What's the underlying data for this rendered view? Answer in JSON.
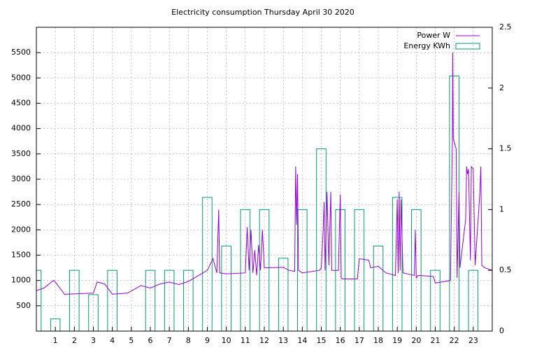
{
  "chart_data": {
    "type": "line",
    "title": "Electricity consumption Thursday April 30 2020",
    "xlim": [
      0,
      24
    ],
    "xticks": [
      1,
      2,
      3,
      4,
      5,
      6,
      7,
      8,
      9,
      10,
      11,
      12,
      13,
      14,
      15,
      16,
      17,
      18,
      19,
      20,
      21,
      22,
      23
    ],
    "ylim": [
      0,
      6000
    ],
    "yticks": [
      500,
      1000,
      1500,
      2000,
      2500,
      3000,
      3500,
      4000,
      4500,
      5000,
      5500
    ],
    "y2lim": [
      0,
      2.5
    ],
    "y2ticks": [
      0,
      0.5,
      1,
      1.5,
      2,
      2.5
    ],
    "grid": true,
    "legend": "top-right",
    "series": [
      {
        "name": "Power W",
        "color": "#9400d3",
        "type": "line",
        "x": [
          0,
          0.4,
          0.9,
          1.0,
          1.5,
          1.6,
          3.0,
          3.2,
          3.6,
          4.0,
          4.8,
          5.5,
          6.0,
          6.5,
          7.0,
          7.5,
          8.0,
          9.0,
          9.3,
          9.5,
          9.6,
          9.65,
          10.0,
          11.0,
          11.1,
          11.2,
          11.3,
          11.4,
          11.5,
          11.6,
          11.7,
          11.8,
          11.9,
          12.0,
          13.0,
          13.3,
          13.6,
          13.65,
          13.7,
          13.75,
          13.8,
          14.0,
          14.9,
          15.0,
          15.1,
          15.15,
          15.2,
          15.3,
          15.4,
          15.5,
          15.55,
          15.9,
          16.0,
          16.05,
          16.1,
          16.9,
          17.0,
          17.5,
          17.6,
          18.0,
          18.4,
          18.9,
          19.0,
          19.05,
          19.1,
          19.15,
          19.2,
          19.3,
          19.9,
          19.95,
          20.0,
          20.1,
          20.9,
          21.0,
          21.5,
          21.8,
          21.9,
          21.92,
          21.95,
          22.1,
          22.15,
          22.25,
          22.3,
          22.6,
          22.65,
          22.7,
          22.75,
          22.85,
          22.9,
          23.0,
          23.1,
          23.35,
          23.4,
          23.45,
          23.6,
          24.0
        ],
        "values": [
          800,
          850,
          1000,
          970,
          720,
          730,
          750,
          970,
          930,
          730,
          750,
          900,
          850,
          930,
          970,
          920,
          980,
          1200,
          1430,
          1150,
          2400,
          1150,
          1130,
          1150,
          2050,
          1200,
          2000,
          1150,
          1600,
          1100,
          1700,
          1200,
          2000,
          1250,
          1260,
          1200,
          1180,
          3250,
          2100,
          3100,
          1200,
          1150,
          1200,
          1250,
          2000,
          2550,
          1200,
          2750,
          1300,
          2750,
          1200,
          1200,
          2700,
          1050,
          1030,
          1030,
          1430,
          1400,
          1250,
          1280,
          1150,
          1100,
          2600,
          1150,
          2750,
          1200,
          2600,
          1150,
          1100,
          2000,
          1050,
          1100,
          1080,
          950,
          980,
          1000,
          3800,
          5500,
          3800,
          3600,
          1050,
          2750,
          1250,
          2200,
          3250,
          3100,
          3200,
          1400,
          3250,
          3200,
          1300,
          2750,
          3250,
          1300,
          1250,
          1200
        ]
      },
      {
        "name": "Energy KWh",
        "color": "#009e73",
        "type": "boxes",
        "axis": "y2",
        "x": [
          0,
          1,
          2,
          3,
          4,
          5,
          6,
          7,
          8,
          9,
          10,
          11,
          12,
          13,
          14,
          15,
          16,
          17,
          18,
          19,
          20,
          21,
          22,
          23
        ],
        "values": [
          0.5,
          0.1,
          0.5,
          0.3,
          0.5,
          0,
          0.5,
          0.5,
          0.5,
          1.1,
          0.7,
          1.0,
          1.0,
          0.6,
          1.0,
          1.5,
          1.0,
          1.0,
          0.7,
          1.1,
          1.0,
          0.5,
          2.1,
          0.5
        ]
      }
    ]
  }
}
